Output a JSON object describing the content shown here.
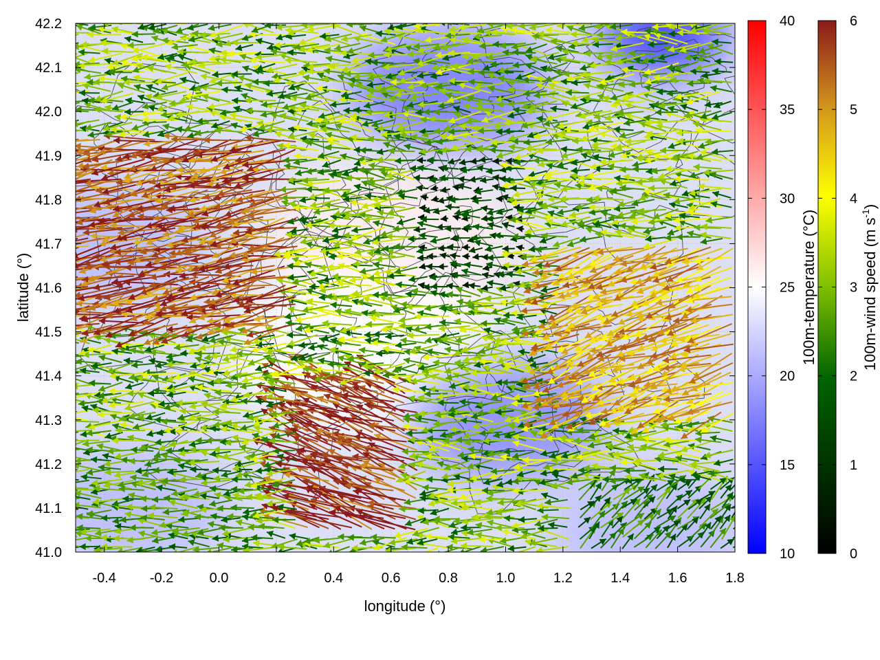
{
  "chart_data": {
    "type": "heatmap",
    "title": "",
    "xlabel": "longitude (°)",
    "ylabel": "latitude (°)",
    "xlim": [
      -0.5,
      1.8
    ],
    "ylim": [
      41.0,
      42.2
    ],
    "x_ticks": [
      "-0.4",
      "-0.2",
      "0.0",
      "0.2",
      "0.4",
      "0.6",
      "0.8",
      "1.0",
      "1.2",
      "1.4",
      "1.6",
      "1.8"
    ],
    "y_ticks": [
      "41.0",
      "41.1",
      "41.2",
      "41.3",
      "41.4",
      "41.5",
      "41.6",
      "41.7",
      "41.8",
      "41.9",
      "42.0",
      "42.1",
      "42.2"
    ],
    "grid": true,
    "temperature_colorbar": {
      "label": "100m-temperature (°C)",
      "range": [
        10,
        40
      ],
      "ticks": [
        "10",
        "15",
        "20",
        "25",
        "30",
        "35",
        "40"
      ],
      "colors": [
        "#0000ff",
        "#ffffff",
        "#ff0000"
      ]
    },
    "wind_colorbar": {
      "label_main": "100m-wind speed (m s",
      "label_sup": "-1",
      "label_end": ")",
      "range": [
        0,
        6
      ],
      "ticks": [
        "0",
        "1",
        "2",
        "3",
        "4",
        "5",
        "6"
      ],
      "colors": [
        "#000000",
        "#006400",
        "#7fbf00",
        "#ffff00",
        "#d59a1c",
        "#8b1a1a"
      ]
    },
    "temperature_features": [
      {
        "lon": -0.4,
        "lat": 41.7,
        "temp": 21
      },
      {
        "lon": 0.6,
        "lat": 41.7,
        "temp": 26
      },
      {
        "lon": 0.5,
        "lat": 41.45,
        "temp": 25
      },
      {
        "lon": 1.55,
        "lat": 42.17,
        "temp": 13
      },
      {
        "lon": 0.8,
        "lat": 42.05,
        "temp": 17
      },
      {
        "lon": 1.0,
        "lat": 41.3,
        "temp": 18
      },
      {
        "lon": 1.5,
        "lat": 41.05,
        "temp": 21
      },
      {
        "lon": -0.3,
        "lat": 41.1,
        "temp": 21
      }
    ],
    "wind_field": {
      "description": "Easterly winds (blowing westward); strongest (5–6 m/s) in the south-central and western belts, weak (<2 m/s) near 0.7–1.1°E, 41.6–41.9°N; northeasterly flow in the far south-east.",
      "regions": [
        {
          "lon_range": [
            -0.5,
            0.3
          ],
          "lat_range": [
            41.5,
            41.95
          ],
          "speed": 5.5,
          "direction_deg": 190
        },
        {
          "lon_range": [
            0.3,
            0.7
          ],
          "lat_range": [
            41.05,
            41.4
          ],
          "speed": 5.8,
          "direction_deg": 160
        },
        {
          "lon_range": [
            0.7,
            1.1
          ],
          "lat_range": [
            41.6,
            41.9
          ],
          "speed": 1.2,
          "direction_deg": 180
        },
        {
          "lon_range": [
            1.25,
            1.8
          ],
          "lat_range": [
            41.0,
            41.15
          ],
          "speed": 2.2,
          "direction_deg": 45
        },
        {
          "lon_range": [
            -0.5,
            0.2
          ],
          "lat_range": [
            41.0,
            41.25
          ],
          "speed": 2.5,
          "direction_deg": 180
        },
        {
          "lon_range": [
            1.2,
            1.8
          ],
          "lat_range": [
            41.3,
            41.7
          ],
          "speed": 4.8,
          "direction_deg": 200
        }
      ]
    }
  }
}
